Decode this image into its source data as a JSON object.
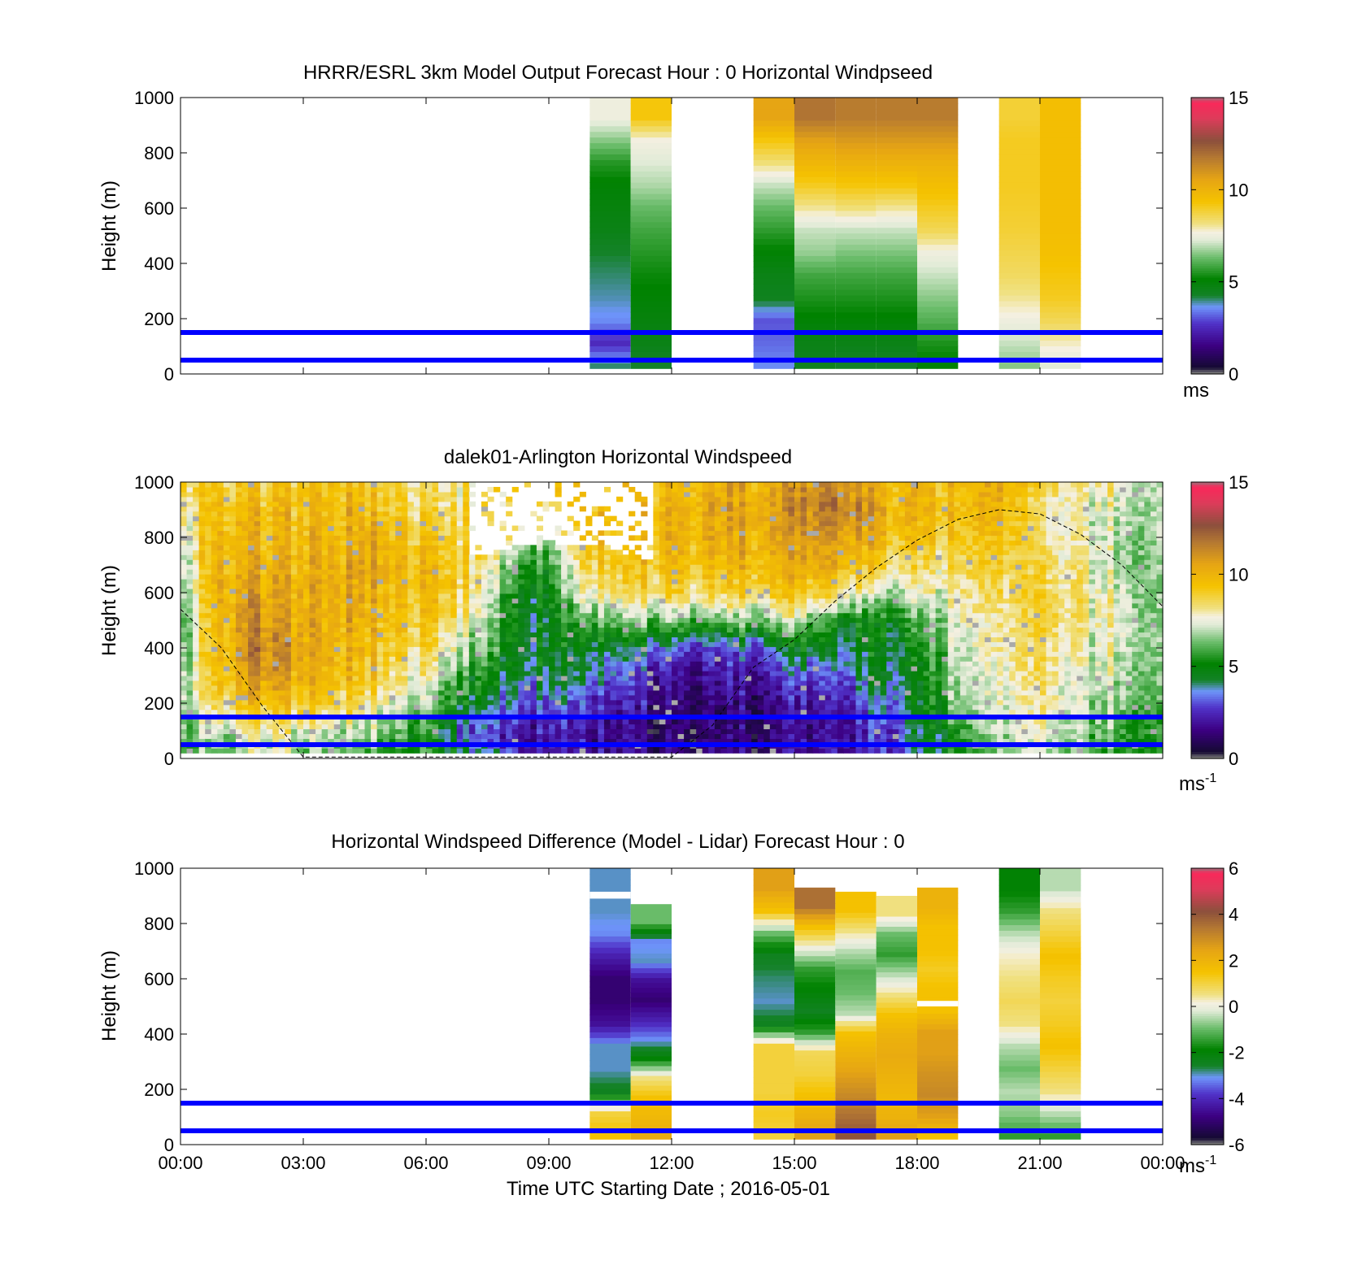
{
  "figure": {
    "xlabel": "Time UTC  Starting Date ; 2016-05-01",
    "x_tick_labels": [
      "00:00",
      "03:00",
      "06:00",
      "09:00",
      "12:00",
      "15:00",
      "18:00",
      "21:00",
      "00:00"
    ],
    "y_tick_labels": [
      "0",
      "200",
      "400",
      "600",
      "800",
      "1000"
    ]
  },
  "chart_data": [
    {
      "type": "heatmap",
      "title": "HRRR/ESRL 3km Model Output   Forecast Hour : 0 Horizontal Windpseed",
      "ylabel": "Height (m)",
      "xlim": [
        "00:00",
        "24:00"
      ],
      "ylim": [
        0,
        1000
      ],
      "colorbar": {
        "range": [
          0,
          15
        ],
        "ticks": [
          "0",
          "5",
          "10",
          "15"
        ],
        "unit": "ms",
        "unit_sup": ""
      },
      "reference_lines_m": [
        50,
        150
      ],
      "reference_line_color": "#0000ff",
      "columns": [
        {
          "start_h": 10.0,
          "end_h": 11.0,
          "ymin": 20,
          "values": [
            4.0,
            2.5,
            3.5,
            3.8,
            4.0,
            4.2,
            4.6,
            4.8,
            5.0,
            5.5,
            6.5,
            7.5
          ]
        },
        {
          "start_h": 11.0,
          "end_h": 12.0,
          "ymin": 20,
          "values": [
            4.2,
            4.6,
            4.8,
            5.0,
            5.2,
            5.5,
            5.8,
            6.2,
            6.8,
            7.2,
            7.6,
            9.2
          ]
        },
        {
          "start_h": 14.0,
          "end_h": 15.0,
          "ymin": 20,
          "values": [
            3.5,
            3.2,
            3.0,
            4.4,
            4.6,
            5.0,
            5.6,
            6.2,
            7.0,
            8.2,
            9.2,
            10.5
          ]
        },
        {
          "start_h": 15.0,
          "end_h": 16.0,
          "ymin": 20,
          "values": [
            4.4,
            4.6,
            5.0,
            5.4,
            5.8,
            6.6,
            7.0,
            8.0,
            9.0,
            9.8,
            10.6,
            11.8
          ]
        },
        {
          "start_h": 16.0,
          "end_h": 17.0,
          "ymin": 20,
          "values": [
            4.2,
            4.6,
            5.0,
            5.4,
            5.8,
            6.4,
            7.0,
            8.2,
            9.2,
            10.0,
            10.8,
            11.6
          ]
        },
        {
          "start_h": 17.0,
          "end_h": 18.0,
          "ymin": 20,
          "values": [
            4.2,
            4.6,
            5.0,
            5.4,
            5.8,
            6.4,
            7.0,
            8.0,
            9.2,
            10.0,
            10.8,
            11.6
          ]
        },
        {
          "start_h": 18.0,
          "end_h": 19.0,
          "ymin": 20,
          "values": [
            5.0,
            5.4,
            6.0,
            6.5,
            7.0,
            7.5,
            8.5,
            9.0,
            9.5,
            10.0,
            10.8,
            11.6
          ]
        },
        {
          "start_h": 20.0,
          "end_h": 21.0,
          "ymin": 20,
          "values": [
            6.5,
            7.0,
            7.5,
            8.0,
            8.4,
            8.6,
            8.8,
            8.9,
            9.0,
            9.0,
            9.0,
            8.8
          ]
        },
        {
          "start_h": 21.0,
          "end_h": 22.0,
          "ymin": 20,
          "values": [
            7.2,
            7.8,
            8.5,
            9.0,
            9.2,
            9.4,
            9.5,
            9.5,
            9.5,
            9.5,
            9.5,
            9.5
          ]
        }
      ]
    },
    {
      "type": "heatmap",
      "title": "dalek01-Arlington  Horizontal Windspeed",
      "ylabel": "Height (m)",
      "xlim": [
        "00:00",
        "24:00"
      ],
      "ylim": [
        0,
        1000
      ],
      "colorbar": {
        "range": [
          0,
          15
        ],
        "ticks": [
          "0",
          "5",
          "10",
          "15"
        ],
        "unit": "ms",
        "unit_sup": "-1"
      },
      "reference_lines_m": [
        50,
        150
      ],
      "reference_line_color": "#0000ff",
      "profiles_by_hour": [
        {
          "h": 0.0,
          "values": [
            5.5,
            6.5,
            7.0,
            6.8,
            6.2,
            6.0,
            6.5,
            7.0,
            7.5,
            8.0,
            9.0
          ]
        },
        {
          "h": 1.0,
          "values": [
            6.0,
            7.0,
            8.5,
            9.5,
            9.8,
            10.0,
            10.0,
            10.0,
            9.8,
            9.5,
            9.0
          ]
        },
        {
          "h": 2.0,
          "values": [
            7.0,
            8.0,
            9.5,
            11.0,
            11.5,
            11.0,
            10.5,
            10.0,
            9.8,
            9.5,
            9.0
          ]
        },
        {
          "h": 3.0,
          "values": [
            6.0,
            7.5,
            9.0,
            10.0,
            10.2,
            10.0,
            10.0,
            9.8,
            9.6,
            9.5,
            9.2
          ]
        },
        {
          "h": 4.0,
          "values": [
            6.0,
            7.2,
            8.8,
            9.6,
            10.0,
            10.2,
            10.4,
            10.2,
            10.0,
            9.8,
            9.5
          ]
        },
        {
          "h": 5.0,
          "values": [
            5.5,
            6.5,
            8.0,
            9.0,
            9.5,
            9.8,
            10.0,
            10.5,
            10.2,
            9.5,
            9.0
          ]
        },
        {
          "h": 6.0,
          "values": [
            5.0,
            5.5,
            6.5,
            7.5,
            8.5,
            9.0,
            9.5,
            9.5,
            9.0,
            8.5,
            8.0
          ]
        },
        {
          "h": 7.0,
          "values": [
            4.5,
            3.0,
            4.5,
            5.5,
            6.5,
            7.8,
            8.5,
            8.8,
            8.6,
            8.2,
            8.0
          ]
        },
        {
          "h": 8.0,
          "values": [
            3.0,
            2.2,
            3.5,
            4.5,
            5.0,
            5.0,
            5.5,
            6.5,
            8.0,
            8.5,
            8.5
          ]
        },
        {
          "h": 9.0,
          "values": [
            2.0,
            2.0,
            3.0,
            4.2,
            4.4,
            4.5,
            4.6,
            5.2,
            6.5,
            8.5,
            9.0
          ]
        },
        {
          "h": 10.0,
          "values": [
            2.0,
            1.8,
            2.5,
            3.8,
            4.5,
            6.0,
            8.0,
            9.0,
            9.5,
            9.5,
            9.5
          ]
        },
        {
          "h": 11.0,
          "values": [
            1.8,
            1.6,
            2.0,
            3.0,
            4.2,
            6.5,
            8.5,
            9.2,
            9.5,
            9.5,
            9.5
          ]
        },
        {
          "h": 12.0,
          "values": [
            1.5,
            1.2,
            1.5,
            2.0,
            3.2,
            6.5,
            9.0,
            9.8,
            10.0,
            10.0,
            10.0
          ]
        },
        {
          "h": 13.0,
          "values": [
            1.5,
            1.0,
            1.2,
            1.8,
            2.5,
            6.0,
            8.5,
            9.5,
            10.0,
            10.2,
            10.0
          ]
        },
        {
          "h": 14.0,
          "values": [
            1.5,
            1.2,
            1.5,
            2.0,
            3.2,
            6.5,
            9.0,
            9.8,
            10.2,
            10.5,
            10.2
          ]
        },
        {
          "h": 15.0,
          "values": [
            1.8,
            1.5,
            1.8,
            3.0,
            4.4,
            7.0,
            9.2,
            10.0,
            10.5,
            11.0,
            10.5
          ]
        },
        {
          "h": 16.0,
          "values": [
            2.0,
            1.5,
            1.8,
            2.5,
            4.2,
            5.0,
            8.5,
            9.8,
            10.5,
            11.5,
            11.0
          ]
        },
        {
          "h": 17.0,
          "values": [
            2.5,
            2.5,
            3.5,
            4.4,
            4.6,
            5.0,
            7.0,
            9.0,
            10.0,
            10.5,
            10.0
          ]
        },
        {
          "h": 18.0,
          "values": [
            4.0,
            4.2,
            4.5,
            4.8,
            5.0,
            6.0,
            7.5,
            8.5,
            9.5,
            10.0,
            9.8
          ]
        },
        {
          "h": 19.0,
          "values": [
            5.0,
            5.5,
            6.5,
            6.8,
            7.0,
            7.5,
            8.0,
            8.5,
            9.0,
            9.5,
            9.5
          ]
        },
        {
          "h": 20.0,
          "values": [
            6.5,
            7.0,
            7.5,
            7.5,
            7.8,
            8.0,
            8.5,
            9.0,
            9.5,
            10.0,
            10.5
          ]
        },
        {
          "h": 21.0,
          "values": [
            7.5,
            8.0,
            8.5,
            8.8,
            9.0,
            9.2,
            9.2,
            9.0,
            8.8,
            8.5,
            9.0
          ]
        },
        {
          "h": 22.0,
          "values": [
            6.0,
            6.5,
            7.0,
            7.2,
            7.5,
            7.8,
            8.0,
            7.8,
            7.5,
            7.5,
            8.0
          ]
        },
        {
          "h": 23.0,
          "values": [
            5.5,
            6.0,
            6.5,
            7.0,
            7.2,
            7.5,
            7.2,
            7.0,
            7.0,
            7.2,
            7.5
          ]
        },
        {
          "h": 24.0,
          "values": [
            5.5,
            6.0,
            6.5,
            7.0,
            7.0,
            7.0,
            7.0,
            7.0,
            7.2,
            7.5,
            7.5
          ]
        }
      ],
      "missing_top_region": {
        "start_h": 7.0,
        "end_h": 11.5,
        "bottom_at_start_m": 720,
        "bottom_mid_m": 780,
        "gap_top_m": 1000
      },
      "boundary_layer_curve": [
        {
          "h": 0.0,
          "height_m": 540
        },
        {
          "h": 1.0,
          "height_m": 400
        },
        {
          "h": 2.0,
          "height_m": 190
        },
        {
          "h": 3.0,
          "height_m": 5
        },
        {
          "h": 12.0,
          "height_m": 5
        },
        {
          "h": 13.0,
          "height_m": 120
        },
        {
          "h": 14.0,
          "height_m": 330
        },
        {
          "h": 15.0,
          "height_m": 430
        },
        {
          "h": 16.0,
          "height_m": 570
        },
        {
          "h": 17.0,
          "height_m": 690
        },
        {
          "h": 18.0,
          "height_m": 790
        },
        {
          "h": 19.0,
          "height_m": 865
        },
        {
          "h": 20.0,
          "height_m": 900
        },
        {
          "h": 21.0,
          "height_m": 885
        },
        {
          "h": 22.0,
          "height_m": 810
        },
        {
          "h": 23.0,
          "height_m": 700
        },
        {
          "h": 24.0,
          "height_m": 550
        }
      ]
    },
    {
      "type": "heatmap",
      "title": "Horizontal Windspeed Difference (Model - Lidar) Forecast Hour : 0",
      "ylabel": "Height (m)",
      "xlabel": "Time UTC  Starting Date ; 2016-05-01",
      "xlim": [
        "00:00",
        "24:00"
      ],
      "ylim": [
        0,
        1000
      ],
      "colorbar": {
        "range": [
          -6,
          6
        ],
        "ticks": [
          "-6",
          "-4",
          "-2",
          "0",
          "2",
          "4",
          "6"
        ],
        "unit": "ms",
        "unit_sup": "-1"
      },
      "reference_lines_m": [
        50,
        150
      ],
      "reference_line_color": "#0000ff",
      "columns": [
        {
          "start_h": 10.0,
          "end_h": 11.0,
          "ymin": 20,
          "ymax": 1000,
          "values": [
            1.5,
            1.0,
            -2.5,
            -3.0,
            -3.0,
            -4.5,
            -5.0,
            -5.0,
            -4.2,
            -3.2,
            -3.0,
            -3.0
          ]
        },
        {
          "start_h": 11.0,
          "end_h": 12.0,
          "ymin": 20,
          "ymax": 870,
          "values": [
            2.2,
            1.8,
            1.5,
            0.5,
            -2.0,
            -3.2,
            -4.2,
            -5.0,
            -4.5,
            -3.0,
            -3.2,
            -1.0
          ]
        },
        {
          "start_h": 14.0,
          "end_h": 15.0,
          "ymin": 20,
          "ymax": 1000,
          "values": [
            1.0,
            1.2,
            1.0,
            1.0,
            1.0,
            -2.5,
            -3.0,
            -2.8,
            -2.5,
            -1.0,
            1.5,
            2.5
          ]
        },
        {
          "start_h": 15.0,
          "end_h": 16.0,
          "ymin": 20,
          "ymax": 930,
          "values": [
            2.5,
            2.0,
            1.5,
            1.0,
            0.8,
            -1.5,
            -2.5,
            -2.0,
            -1.5,
            0.0,
            1.5,
            3.5
          ]
        },
        {
          "start_h": 16.0,
          "end_h": 17.0,
          "ymin": 20,
          "ymax": 915,
          "values": [
            4.0,
            3.5,
            3.0,
            2.5,
            2.0,
            1.5,
            -0.5,
            -1.0,
            -1.2,
            -0.5,
            0.5,
            1.5
          ]
        },
        {
          "start_h": 17.0,
          "end_h": 18.0,
          "ymin": 20,
          "ymax": 900,
          "values": [
            2.5,
            2.0,
            1.8,
            2.0,
            2.2,
            2.0,
            1.5,
            0.5,
            -0.5,
            -1.5,
            -1.0,
            0.5
          ]
        },
        {
          "start_h": 18.0,
          "end_h": 19.0,
          "ymin": 20,
          "ymax": 930,
          "values": [
            1.5,
            2.5,
            3.0,
            2.8,
            2.5,
            2.5,
            1.5,
            1.5,
            1.2,
            1.5,
            1.5,
            2.0
          ]
        },
        {
          "start_h": 20.0,
          "end_h": 21.0,
          "ymin": 20,
          "ymax": 1000,
          "values": [
            -1.5,
            -0.8,
            -0.5,
            -1.0,
            -0.5,
            0.5,
            0.8,
            0.5,
            0.2,
            -0.5,
            -1.5,
            -2.0
          ]
        },
        {
          "start_h": 21.0,
          "end_h": 22.0,
          "ymin": 20,
          "ymax": 1000,
          "values": [
            -1.5,
            -0.5,
            0.5,
            1.0,
            1.5,
            1.2,
            1.0,
            1.2,
            1.5,
            1.0,
            0.5,
            -0.5
          ]
        }
      ],
      "gaps": [
        {
          "start_h": 10.0,
          "end_h": 11.0,
          "from_m": 890,
          "to_m": 915
        },
        {
          "start_h": 18.0,
          "end_h": 19.0,
          "from_m": 500,
          "to_m": 520
        }
      ]
    }
  ]
}
